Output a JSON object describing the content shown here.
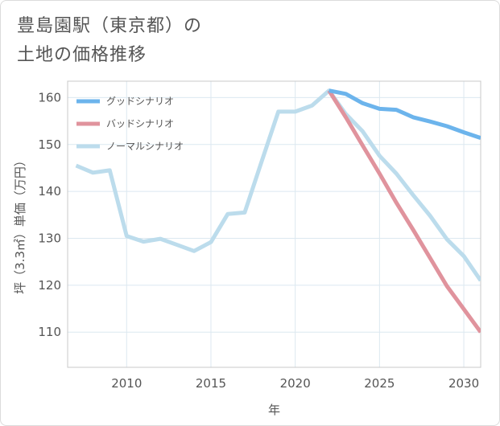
{
  "chart_data": {
    "type": "line",
    "title": "豊島園駅（東京都）の\n土地の価格推移",
    "xlabel": "年",
    "ylabel": "坪（3.3㎡）単価（万円）",
    "xlim": [
      2006.5,
      2031
    ],
    "ylim": [
      102.5,
      163.5
    ],
    "xticks": [
      2010,
      2015,
      2020,
      2025,
      2030
    ],
    "yticks": [
      110,
      120,
      130,
      140,
      150,
      160
    ],
    "grid": true,
    "legend_position": "top-left",
    "series": [
      {
        "name": "グッドシナリオ",
        "color": "#6cb4ec",
        "x": [
          2022,
          2023,
          2024,
          2025,
          2026,
          2027,
          2028,
          2029,
          2030,
          2031
        ],
        "y": [
          161.5,
          160.8,
          158.8,
          157.6,
          157.4,
          155.8,
          154.9,
          153.9,
          152.6,
          151.4
        ]
      },
      {
        "name": "バッドシナリオ",
        "color": "#e0939d",
        "x": [
          2022,
          2023,
          2024,
          2025,
          2026,
          2027,
          2028,
          2029,
          2030,
          2031
        ],
        "y": [
          161.5,
          155.8,
          149.8,
          143.8,
          137.6,
          131.8,
          125.8,
          119.8,
          114.9,
          110.0
        ]
      },
      {
        "name": "ノーマルシナリオ",
        "color": "#bcdcec",
        "x": [
          2007,
          2008,
          2009,
          2010,
          2011,
          2012,
          2013,
          2014,
          2015,
          2016,
          2017,
          2018,
          2019,
          2020,
          2021,
          2022,
          2023,
          2024,
          2025,
          2026,
          2027,
          2028,
          2029,
          2030,
          2031
        ],
        "y": [
          145.5,
          144.0,
          144.5,
          130.5,
          129.3,
          129.9,
          128.6,
          127.3,
          129.2,
          135.2,
          135.5,
          146.3,
          157.0,
          157.0,
          158.3,
          161.5,
          156.5,
          152.8,
          147.6,
          143.8,
          139.2,
          134.8,
          129.8,
          126.2,
          121.0
        ]
      }
    ]
  }
}
